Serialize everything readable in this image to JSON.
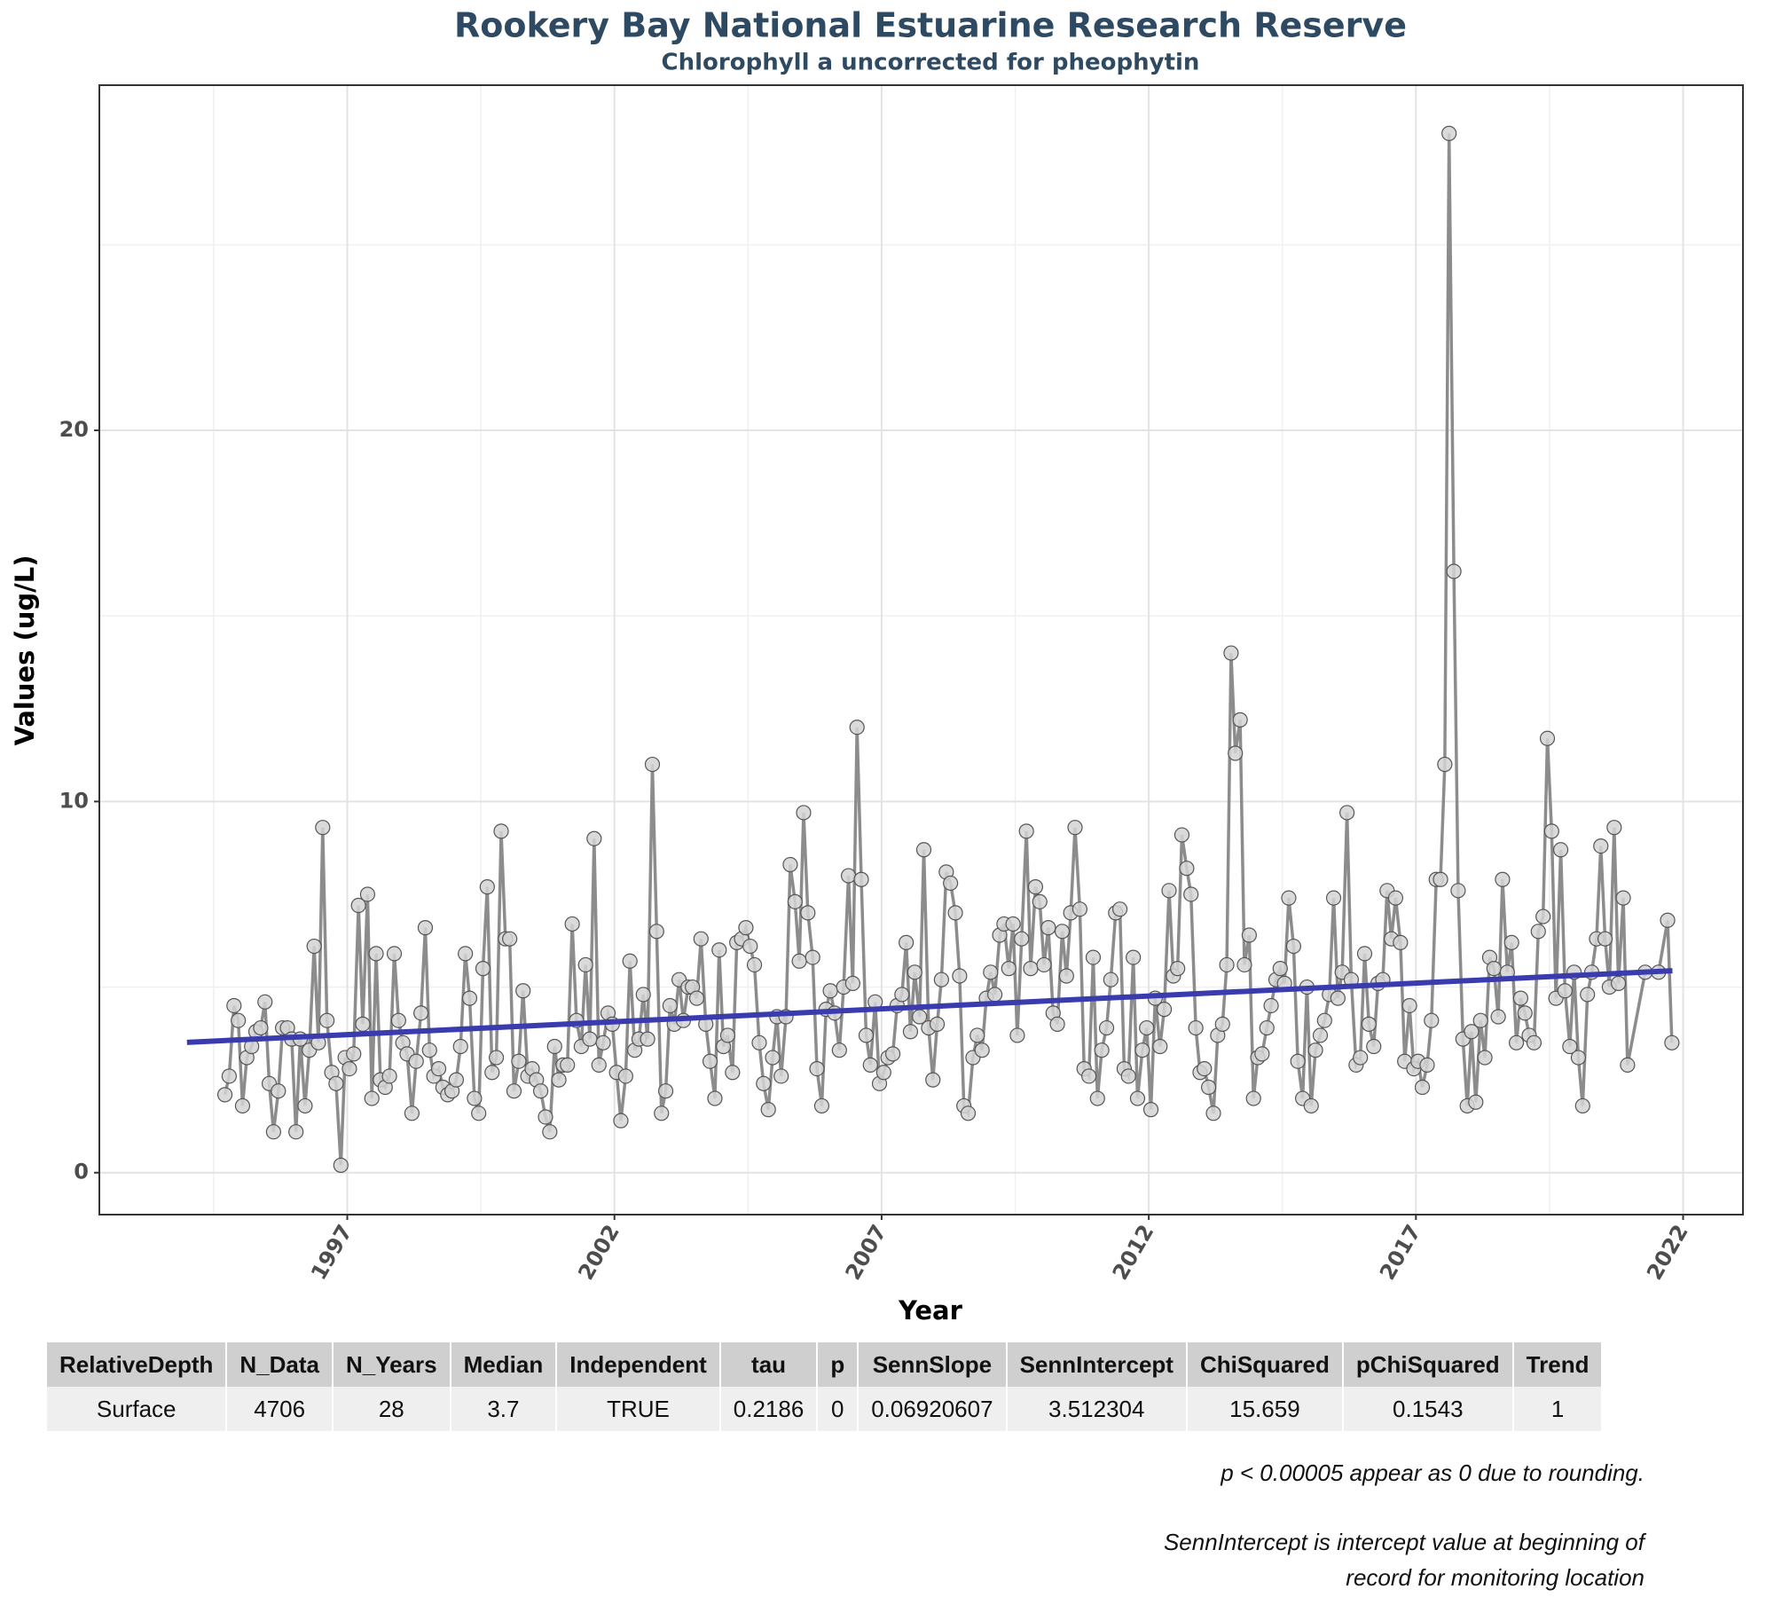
{
  "chart_data": {
    "type": "line",
    "title": "Rookery Bay National Estuarine Research Reserve",
    "subtitle": "Chlorophyll a uncorrected for pheophytin",
    "x_label": "Year",
    "y_label": "Values (ug/L)",
    "xlim": [
      1992.36,
      2023.12
    ],
    "ylim": [
      -1.13,
      29.3
    ],
    "xticks": [
      1997,
      2002,
      2007,
      2012,
      2017,
      2022
    ],
    "yticks": [
      0,
      10,
      20
    ],
    "x_minor_grid": [
      1994.5,
      1999.5,
      2004.5,
      2009.5,
      2014.5,
      2019.5
    ],
    "y_minor_grid": [
      5,
      15,
      25
    ],
    "grid": true,
    "series": [
      {
        "color": "#8c8c8c",
        "marker_color": "#d3d3d3",
        "x": [
          1994.71,
          1994.79,
          1994.88,
          1994.96,
          1995.04,
          1995.12,
          1995.21,
          1995.29,
          1995.38,
          1995.46,
          1995.54,
          1995.62,
          1995.71,
          1995.79,
          1995.88,
          1995.96,
          1996.04,
          1996.12,
          1996.21,
          1996.29,
          1996.38,
          1996.46,
          1996.54,
          1996.62,
          1996.71,
          1996.79,
          1996.88,
          1996.96,
          1997.04,
          1997.12,
          1997.21,
          1997.29,
          1997.38,
          1997.46,
          1997.54,
          1997.62,
          1997.71,
          1997.79,
          1997.88,
          1997.96,
          1998.04,
          1998.12,
          1998.21,
          1998.29,
          1998.38,
          1998.46,
          1998.54,
          1998.62,
          1998.71,
          1998.79,
          1998.88,
          1998.96,
          1999.04,
          1999.12,
          1999.21,
          1999.29,
          1999.38,
          1999.46,
          1999.54,
          1999.62,
          1999.71,
          1999.79,
          1999.88,
          1999.96,
          2000.04,
          2000.12,
          2000.21,
          2000.29,
          2000.38,
          2000.46,
          2000.54,
          2000.62,
          2000.71,
          2000.79,
          2000.88,
          2000.96,
          2001.04,
          2001.12,
          2001.21,
          2001.29,
          2001.38,
          2001.46,
          2001.54,
          2001.62,
          2001.71,
          2001.79,
          2001.88,
          2001.96,
          2002.04,
          2002.12,
          2002.21,
          2002.29,
          2002.38,
          2002.46,
          2002.54,
          2002.62,
          2002.71,
          2002.79,
          2002.88,
          2002.96,
          2003.04,
          2003.12,
          2003.21,
          2003.29,
          2003.38,
          2003.46,
          2003.54,
          2003.62,
          2003.71,
          2003.79,
          2003.88,
          2003.96,
          2004.04,
          2004.12,
          2004.21,
          2004.29,
          2004.38,
          2004.46,
          2004.54,
          2004.62,
          2004.71,
          2004.79,
          2004.88,
          2004.96,
          2005.04,
          2005.12,
          2005.21,
          2005.29,
          2005.38,
          2005.46,
          2005.54,
          2005.62,
          2005.71,
          2005.79,
          2005.88,
          2005.96,
          2006.04,
          2006.12,
          2006.21,
          2006.29,
          2006.38,
          2006.46,
          2006.54,
          2006.62,
          2006.71,
          2006.79,
          2006.88,
          2006.96,
          2007.04,
          2007.12,
          2007.21,
          2007.29,
          2007.38,
          2007.46,
          2007.54,
          2007.62,
          2007.71,
          2007.79,
          2007.88,
          2007.96,
          2008.04,
          2008.12,
          2008.21,
          2008.29,
          2008.38,
          2008.46,
          2008.54,
          2008.62,
          2008.71,
          2008.79,
          2008.88,
          2008.96,
          2009.04,
          2009.12,
          2009.21,
          2009.29,
          2009.38,
          2009.46,
          2009.54,
          2009.62,
          2009.71,
          2009.79,
          2009.88,
          2009.96,
          2010.04,
          2010.12,
          2010.21,
          2010.29,
          2010.38,
          2010.46,
          2010.54,
          2010.62,
          2010.71,
          2010.79,
          2010.88,
          2010.96,
          2011.04,
          2011.12,
          2011.21,
          2011.29,
          2011.38,
          2011.46,
          2011.54,
          2011.62,
          2011.71,
          2011.79,
          2011.88,
          2011.96,
          2012.04,
          2012.12,
          2012.21,
          2012.29,
          2012.38,
          2012.46,
          2012.54,
          2012.62,
          2012.71,
          2012.79,
          2012.88,
          2012.96,
          2013.04,
          2013.12,
          2013.21,
          2013.29,
          2013.38,
          2013.46,
          2013.54,
          2013.62,
          2013.71,
          2013.79,
          2013.88,
          2013.96,
          2014.04,
          2014.12,
          2014.21,
          2014.29,
          2014.38,
          2014.46,
          2014.54,
          2014.62,
          2014.71,
          2014.79,
          2014.88,
          2014.96,
          2015.04,
          2015.12,
          2015.21,
          2015.29,
          2015.38,
          2015.46,
          2015.54,
          2015.62,
          2015.71,
          2015.79,
          2015.88,
          2015.96,
          2016.04,
          2016.12,
          2016.21,
          2016.29,
          2016.38,
          2016.46,
          2016.54,
          2016.62,
          2016.71,
          2016.79,
          2016.88,
          2016.96,
          2017.04,
          2017.12,
          2017.21,
          2017.29,
          2017.38,
          2017.46,
          2017.54,
          2017.62,
          2017.71,
          2017.79,
          2017.88,
          2017.96,
          2018.04,
          2018.12,
          2018.21,
          2018.29,
          2018.38,
          2018.46,
          2018.54,
          2018.62,
          2018.71,
          2018.79,
          2018.88,
          2018.96,
          2019.04,
          2019.12,
          2019.21,
          2019.29,
          2019.38,
          2019.46,
          2019.54,
          2019.62,
          2019.71,
          2019.79,
          2019.88,
          2019.96,
          2020.04,
          2020.12,
          2020.21,
          2020.29,
          2020.38,
          2020.46,
          2020.54,
          2020.62,
          2020.71,
          2020.79,
          2020.88,
          2020.96,
          2021.29,
          2021.54,
          2021.71,
          2021.79
        ],
        "values": [
          2.1,
          2.6,
          4.5,
          4.1,
          1.8,
          3.1,
          3.4,
          3.8,
          3.9,
          4.6,
          2.4,
          1.1,
          2.2,
          3.9,
          3.9,
          3.6,
          1.1,
          3.6,
          1.8,
          3.3,
          6.1,
          3.5,
          9.3,
          4.1,
          2.7,
          2.4,
          0.2,
          3.1,
          2.8,
          3.2,
          7.2,
          4.0,
          7.5,
          2.0,
          5.9,
          2.5,
          2.3,
          2.6,
          5.9,
          4.1,
          3.5,
          3.2,
          1.6,
          3.0,
          4.3,
          6.6,
          3.3,
          2.6,
          2.8,
          2.3,
          2.1,
          2.2,
          2.5,
          3.4,
          5.9,
          4.7,
          2.0,
          1.6,
          5.5,
          7.7,
          2.7,
          3.1,
          9.2,
          6.3,
          6.3,
          2.2,
          3.0,
          4.9,
          2.6,
          2.8,
          2.5,
          2.2,
          1.5,
          1.1,
          3.4,
          2.5,
          2.9,
          2.9,
          6.7,
          4.1,
          3.4,
          5.6,
          3.6,
          9.0,
          2.9,
          3.5,
          4.3,
          4.0,
          2.7,
          1.4,
          2.6,
          5.7,
          3.3,
          3.6,
          4.8,
          3.6,
          11.0,
          6.5,
          1.6,
          2.2,
          4.5,
          4.0,
          5.2,
          4.1,
          5.0,
          5.0,
          4.7,
          6.3,
          4.0,
          3.0,
          2.0,
          6.0,
          3.4,
          3.7,
          2.7,
          6.2,
          6.3,
          6.6,
          6.1,
          5.6,
          3.5,
          2.4,
          1.7,
          3.1,
          4.2,
          2.6,
          4.2,
          8.3,
          7.3,
          5.7,
          9.7,
          7.0,
          5.8,
          2.8,
          1.8,
          4.4,
          4.9,
          4.3,
          3.3,
          5.0,
          8.0,
          5.1,
          12.0,
          7.9,
          3.7,
          2.9,
          4.6,
          2.4,
          2.7,
          3.1,
          3.2,
          4.5,
          4.8,
          6.2,
          3.8,
          5.4,
          4.2,
          8.7,
          3.9,
          2.5,
          4.0,
          5.2,
          8.1,
          7.8,
          7.0,
          5.3,
          1.8,
          1.6,
          3.1,
          3.7,
          3.3,
          4.7,
          5.4,
          4.8,
          6.4,
          6.7,
          5.5,
          6.7,
          3.7,
          6.3,
          9.2,
          5.5,
          7.7,
          7.3,
          5.6,
          6.6,
          4.3,
          4.0,
          6.5,
          5.3,
          7.0,
          9.3,
          7.1,
          2.8,
          2.6,
          5.8,
          2.0,
          3.3,
          3.9,
          5.2,
          7.0,
          7.1,
          2.8,
          2.6,
          5.8,
          2.0,
          3.3,
          3.9,
          1.7,
          4.7,
          3.4,
          4.4,
          7.6,
          5.3,
          5.5,
          9.1,
          8.2,
          7.5,
          3.9,
          2.7,
          2.8,
          2.3,
          1.6,
          3.7,
          4.0,
          5.6,
          14.0,
          11.3,
          12.2,
          5.6,
          6.4,
          2.0,
          3.1,
          3.2,
          3.9,
          4.5,
          5.2,
          5.5,
          5.1,
          7.4,
          6.1,
          3.0,
          2.0,
          5.0,
          1.8,
          3.3,
          3.7,
          4.1,
          4.8,
          7.4,
          4.7,
          5.4,
          9.7,
          5.2,
          2.9,
          3.1,
          5.9,
          4.0,
          3.4,
          5.1,
          5.2,
          7.6,
          6.3,
          7.4,
          6.2,
          3.0,
          4.5,
          2.8,
          3.0,
          2.3,
          2.9,
          4.1,
          7.9,
          7.9,
          11.0,
          28.0,
          16.2,
          7.6,
          3.6,
          1.8,
          3.8,
          1.9,
          4.1,
          3.1,
          5.8,
          5.5,
          4.2,
          7.9,
          5.4,
          6.2,
          3.5,
          4.7,
          4.3,
          3.7,
          3.5,
          6.5,
          6.9,
          11.7,
          9.2,
          4.7,
          8.7,
          4.9,
          3.4,
          5.4,
          3.1,
          1.8,
          4.8,
          5.4,
          6.3,
          8.8,
          6.3,
          5.0,
          9.3,
          5.1,
          7.4,
          2.9,
          5.4,
          5.4,
          6.8,
          3.5
        ]
      }
    ],
    "trend": {
      "color": "#3b3bb0",
      "x": [
        1994.0,
        2021.8
      ],
      "values": [
        3.51,
        5.44
      ]
    }
  },
  "table": {
    "columns": [
      "RelativeDepth",
      "N_Data",
      "N_Years",
      "Median",
      "Independent",
      "tau",
      "p",
      "SennSlope",
      "SennIntercept",
      "ChiSquared",
      "pChiSquared",
      "Trend"
    ],
    "rows": [
      [
        "Surface",
        "4706",
        "28",
        "3.7",
        "TRUE",
        "0.2186",
        "0",
        "0.06920607",
        "3.512304",
        "15.659",
        "0.1543",
        "1"
      ]
    ]
  },
  "notes": [
    "p < 0.00005 appear as 0 due to rounding.",
    "SennIntercept is intercept value at beginning of record for monitoring location"
  ]
}
